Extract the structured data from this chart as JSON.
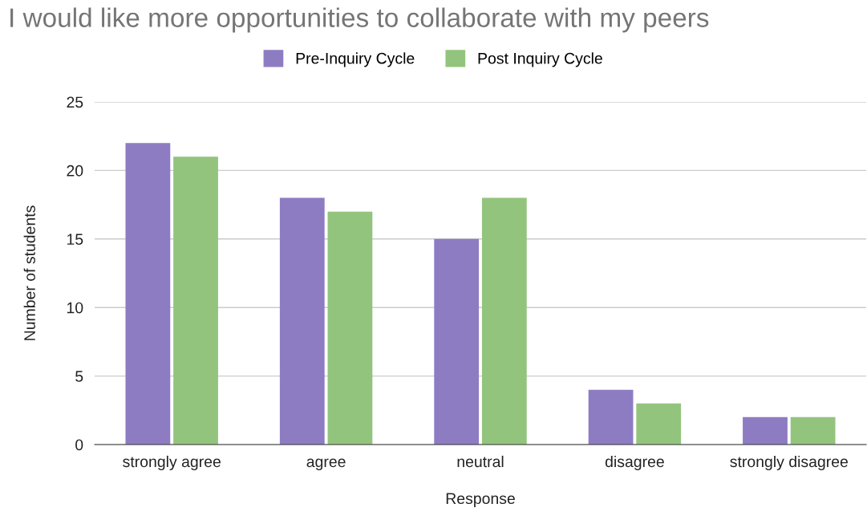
{
  "chart_data": {
    "type": "bar",
    "title": "I would like more opportunities to collaborate with my peers",
    "xlabel": "Response",
    "ylabel": "Number of students",
    "categories": [
      "strongly agree",
      "agree",
      "neutral",
      "disagree",
      "strongly disagree"
    ],
    "series": [
      {
        "name": "Pre-Inquiry Cycle",
        "color": "#8e7cc3",
        "values": [
          22,
          18,
          15,
          4,
          2
        ]
      },
      {
        "name": "Post Inquiry Cycle",
        "color": "#93c47d",
        "values": [
          21,
          17,
          18,
          3,
          2
        ]
      }
    ],
    "ylim": [
      0,
      25
    ],
    "yticks": [
      0,
      5,
      10,
      15,
      20,
      25
    ],
    "grid": "y",
    "legend": "top"
  }
}
